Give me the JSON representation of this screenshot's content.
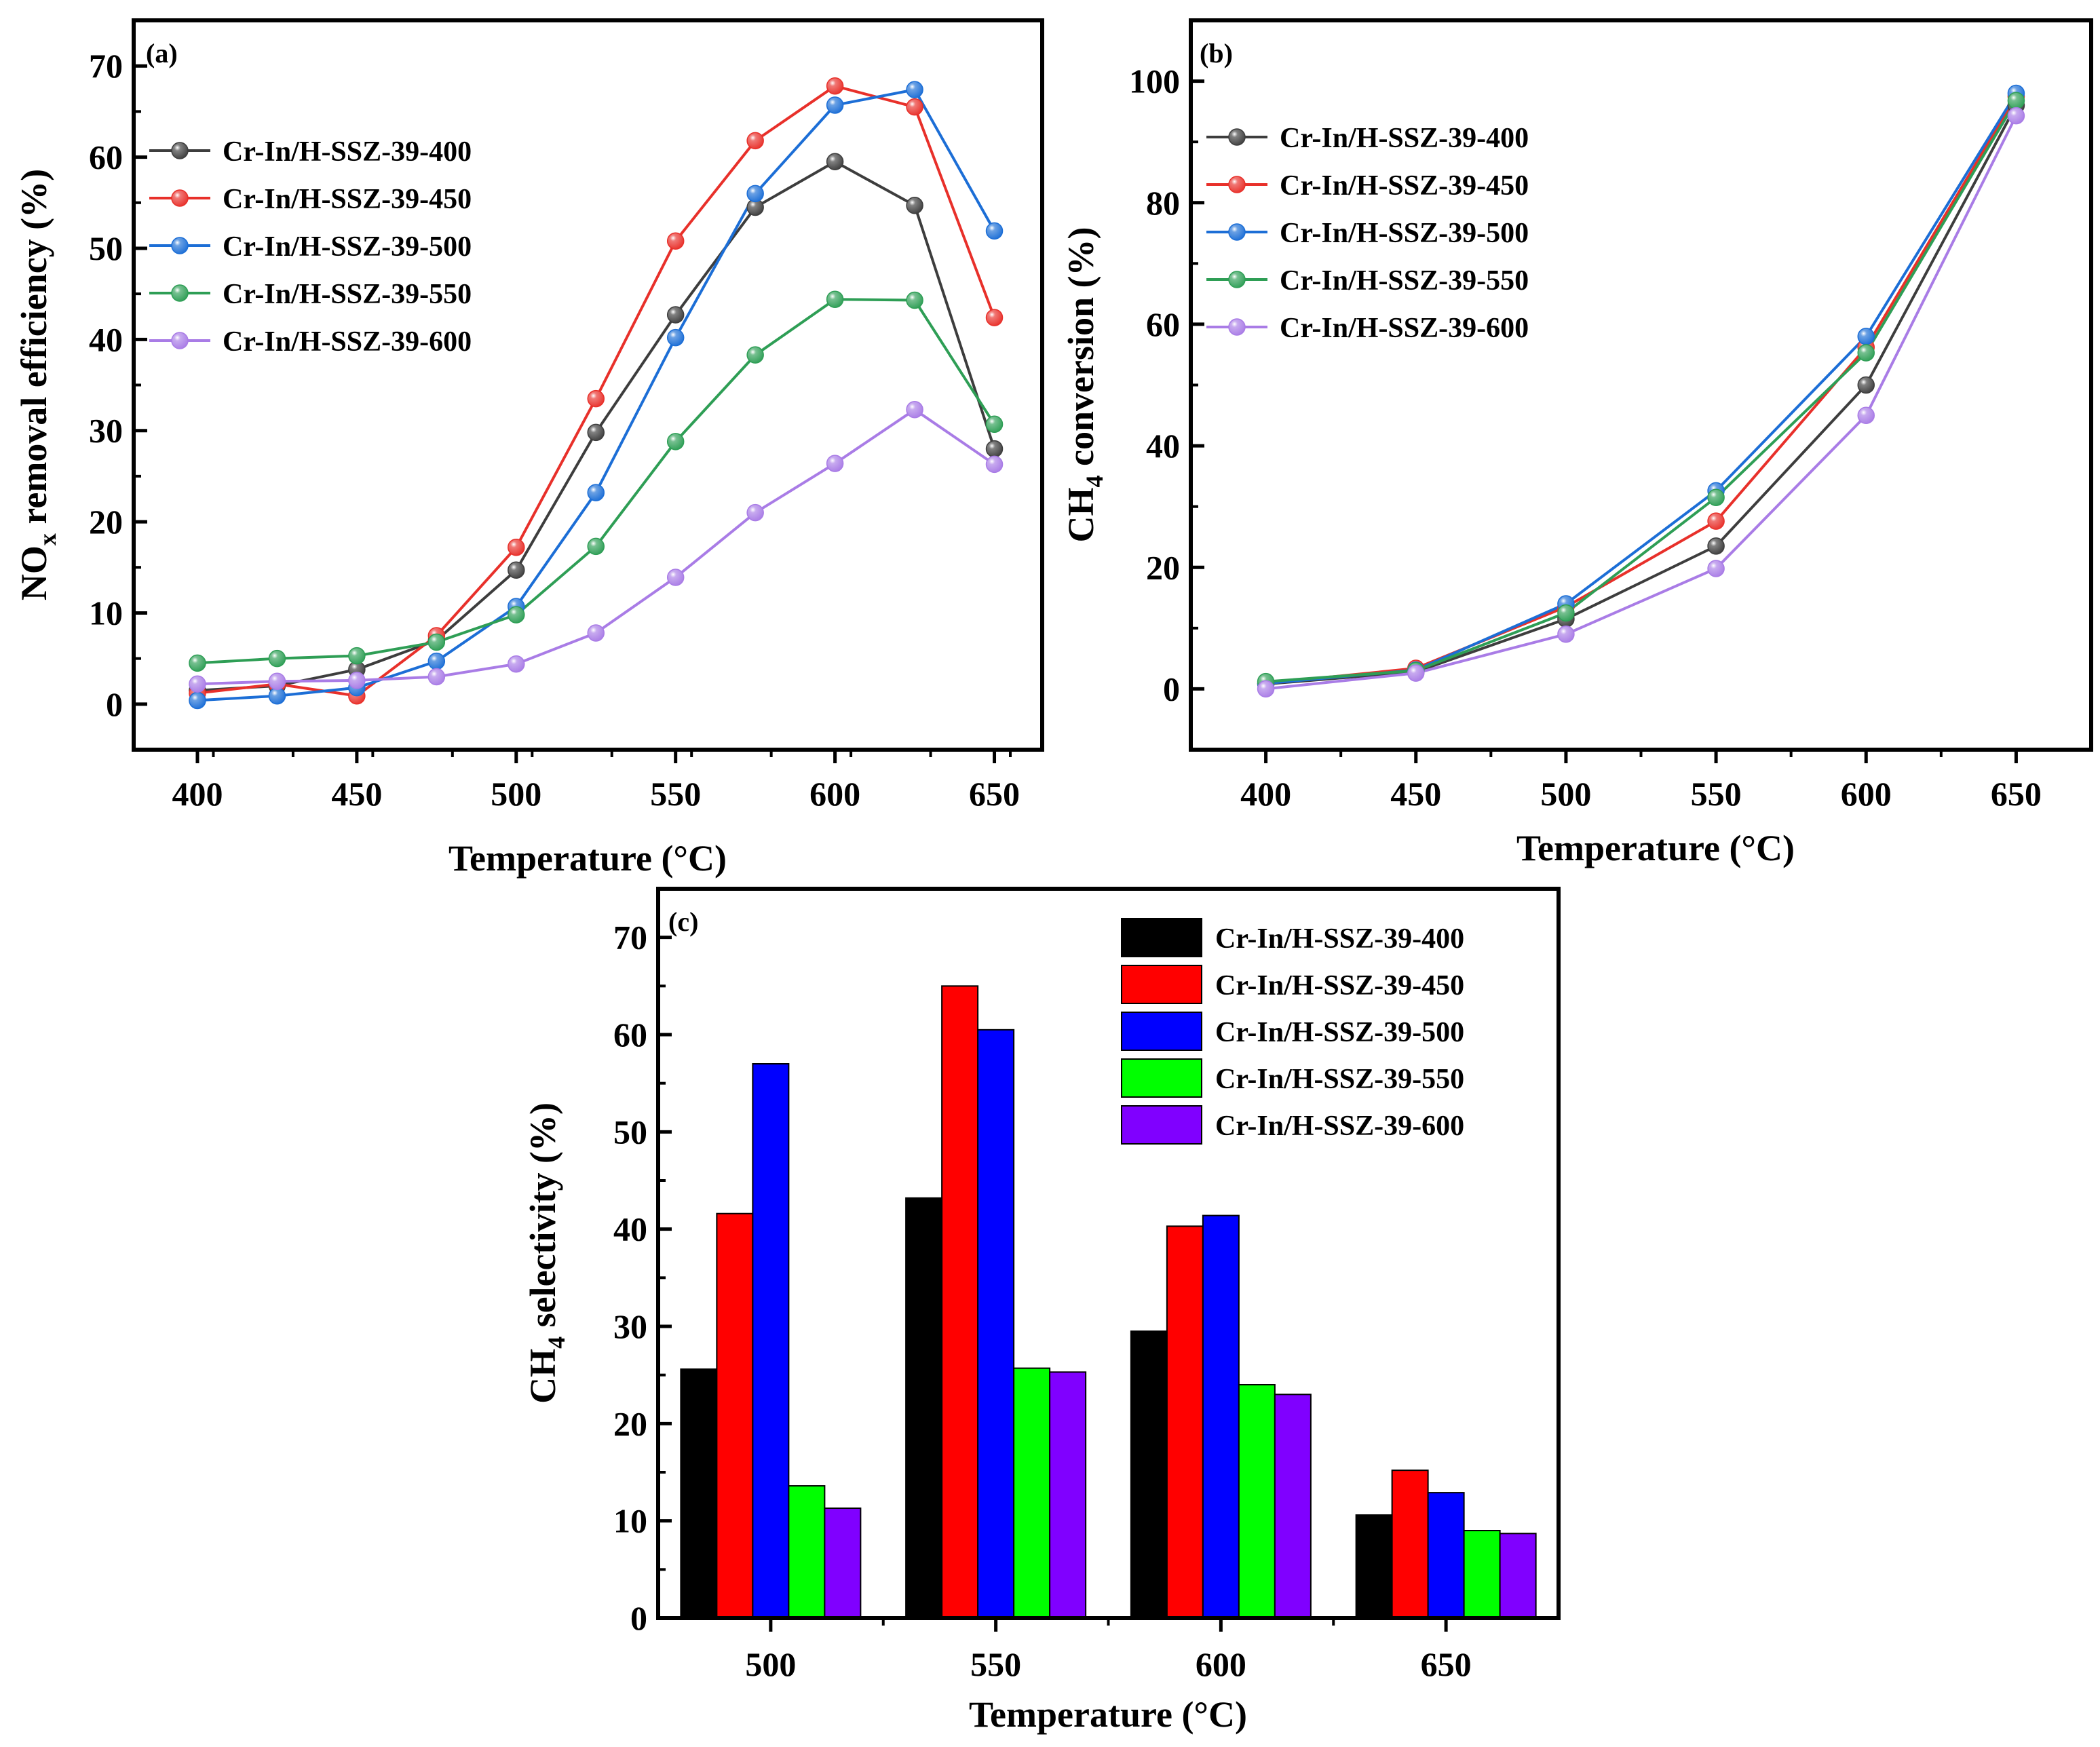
{
  "chart_data": [
    {
      "id": "a",
      "type": "line",
      "panel_label": "(a)",
      "xlabel": "Temperature (°C)",
      "ylabel_main": "NO",
      "ylabel_sub": "x",
      "ylabel_rest": " removal efficiency (%)",
      "xlim": [
        380,
        665
      ],
      "ylim": [
        -5,
        75
      ],
      "xticks": [
        400,
        450,
        500,
        550,
        600,
        650
      ],
      "yticks": [
        0,
        10,
        20,
        30,
        40,
        50,
        60,
        70
      ],
      "legend_position": "upper-left",
      "x": [
        400,
        425,
        450,
        475,
        500,
        525,
        550,
        575,
        600,
        625,
        650
      ],
      "series": [
        {
          "name": "Cr-In/H-SSZ-39-400",
          "color": "#3d3d3d",
          "values": [
            1.5,
            2.0,
            3.8,
            7.0,
            14.7,
            29.8,
            42.7,
            54.5,
            59.5,
            54.7,
            28.0
          ]
        },
        {
          "name": "Cr-In/H-SSZ-39-450",
          "color": "#e8302a",
          "values": [
            1.2,
            2.2,
            0.9,
            7.5,
            17.2,
            33.5,
            50.8,
            61.8,
            67.8,
            65.5,
            42.4
          ]
        },
        {
          "name": "Cr-In/H-SSZ-39-500",
          "color": "#1c6ed6",
          "values": [
            0.4,
            0.9,
            1.8,
            4.7,
            10.7,
            23.2,
            40.2,
            56.0,
            65.7,
            67.4,
            51.9
          ]
        },
        {
          "name": "Cr-In/H-SSZ-39-550",
          "color": "#2e9e55",
          "values": [
            4.5,
            5.0,
            5.3,
            6.8,
            9.8,
            17.3,
            28.8,
            38.3,
            44.4,
            44.3,
            30.7
          ]
        },
        {
          "name": "Cr-In/H-SSZ-39-600",
          "color": "#a97ce6",
          "values": [
            2.2,
            2.5,
            2.6,
            3.0,
            4.4,
            7.8,
            13.9,
            21.0,
            26.4,
            32.3,
            26.3
          ]
        }
      ]
    },
    {
      "id": "b",
      "type": "line",
      "panel_label": "(b)",
      "xlabel": "Temperature (°C)",
      "ylabel_main": "CH",
      "ylabel_sub": "4",
      "ylabel_rest": " conversion (%)",
      "xlim": [
        375,
        675
      ],
      "ylim": [
        -10,
        110
      ],
      "xticks": [
        400,
        450,
        500,
        550,
        600,
        650
      ],
      "yticks": [
        0,
        20,
        40,
        60,
        80,
        100
      ],
      "legend_position": "upper-left",
      "x": [
        400,
        450,
        500,
        550,
        600,
        650
      ],
      "series": [
        {
          "name": "Cr-In/H-SSZ-39-400",
          "color": "#3d3d3d",
          "values": [
            0.8,
            2.8,
            11.5,
            23.5,
            50.0,
            96.0
          ]
        },
        {
          "name": "Cr-In/H-SSZ-39-450",
          "color": "#e8302a",
          "values": [
            0.9,
            3.4,
            13.5,
            27.6,
            56.2,
            97.5
          ]
        },
        {
          "name": "Cr-In/H-SSZ-39-500",
          "color": "#1c6ed6",
          "values": [
            0.9,
            3.1,
            14.0,
            32.6,
            58.0,
            98.0
          ]
        },
        {
          "name": "Cr-In/H-SSZ-39-550",
          "color": "#2e9e55",
          "values": [
            1.2,
            3.0,
            12.5,
            31.5,
            55.3,
            96.8
          ]
        },
        {
          "name": "Cr-In/H-SSZ-39-600",
          "color": "#a97ce6",
          "values": [
            0.0,
            2.6,
            9.0,
            19.8,
            45.0,
            94.3
          ]
        }
      ]
    },
    {
      "id": "c",
      "type": "bar",
      "panel_label": "(c)",
      "xlabel": "Temperature (°C)",
      "ylabel_main": "CH",
      "ylabel_sub": "4",
      "ylabel_rest": " selectivity (%)",
      "ylim": [
        0,
        75
      ],
      "yticks": [
        0,
        10,
        20,
        30,
        40,
        50,
        60,
        70
      ],
      "categories": [
        "500",
        "550",
        "600",
        "650"
      ],
      "legend_position": "upper-right",
      "series": [
        {
          "name": "Cr-In/H-SSZ-39-400",
          "color": "#000000",
          "values": [
            25.6,
            43.2,
            29.5,
            10.6
          ]
        },
        {
          "name": "Cr-In/H-SSZ-39-450",
          "color": "#ff0000",
          "values": [
            41.6,
            65.0,
            40.3,
            15.2
          ]
        },
        {
          "name": "Cr-In/H-SSZ-39-500",
          "color": "#0000ff",
          "values": [
            57.0,
            60.5,
            41.4,
            12.9
          ]
        },
        {
          "name": "Cr-In/H-SSZ-39-550",
          "color": "#00ff00",
          "values": [
            13.6,
            25.7,
            24.0,
            9.0
          ]
        },
        {
          "name": "Cr-In/H-SSZ-39-600",
          "color": "#8000ff",
          "values": [
            11.3,
            25.3,
            23.0,
            8.7
          ]
        }
      ]
    }
  ]
}
